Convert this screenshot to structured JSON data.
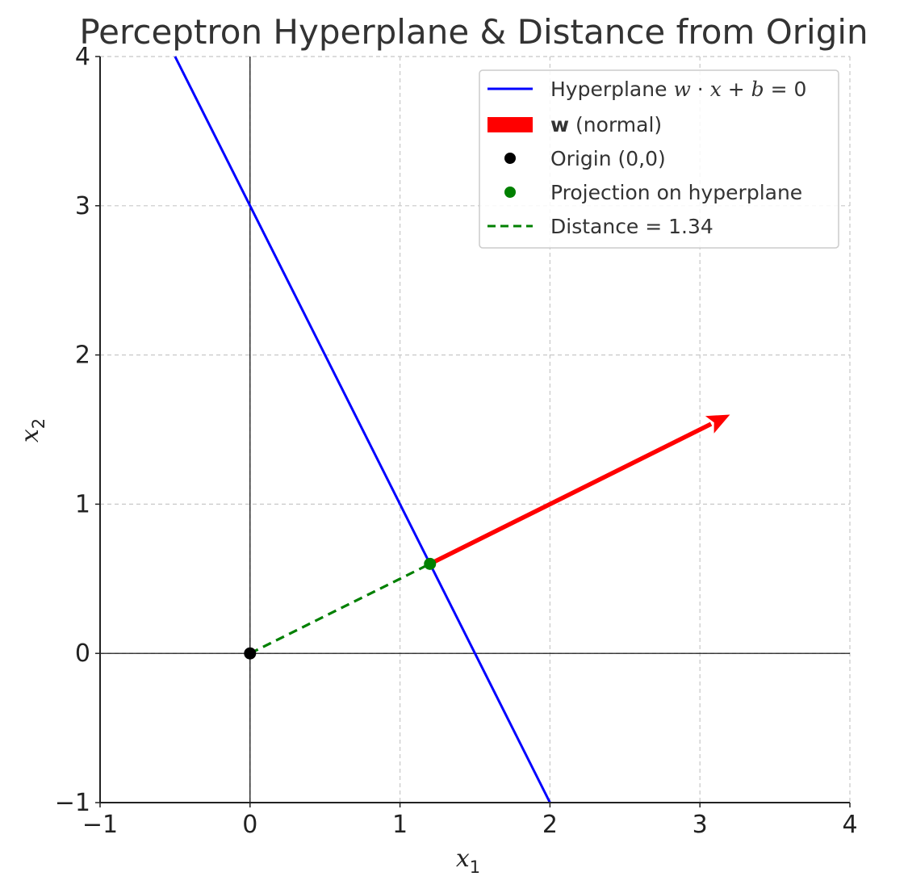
{
  "chart_data": {
    "type": "line",
    "title": "Perceptron Hyperplane & Distance from Origin",
    "xlabel": "x",
    "xlabel_sub": "1",
    "ylabel": "x",
    "ylabel_sub": "2",
    "xlim": [
      -1,
      4
    ],
    "ylim": [
      -1,
      4
    ],
    "xticks": [
      -1,
      0,
      1,
      2,
      3,
      4
    ],
    "yticks": [
      -1,
      0,
      1,
      2,
      3,
      4
    ],
    "xtick_labels": [
      "−1",
      "0",
      "1",
      "2",
      "3",
      "4"
    ],
    "ytick_labels": [
      "−1",
      "0",
      "1",
      "2",
      "3",
      "4"
    ],
    "grid": true,
    "legend_position": "top-right",
    "series": [
      {
        "kind": "line",
        "color": "#0000ff",
        "legend": "Hyperplane w · x + b = 0",
        "x": [
          -0.5,
          2.0
        ],
        "y": [
          4.0,
          -1.0
        ]
      },
      {
        "kind": "arrow",
        "color": "#ff0000",
        "legend": "w (normal)",
        "x": [
          1.2,
          3.2
        ],
        "y": [
          0.6,
          1.6
        ]
      },
      {
        "kind": "point",
        "color": "#000000",
        "legend": "Origin (0,0)",
        "x": [
          0
        ],
        "y": [
          0
        ]
      },
      {
        "kind": "point",
        "color": "#008000",
        "legend": "Projection on hyperplane",
        "x": [
          1.2
        ],
        "y": [
          0.6
        ]
      },
      {
        "kind": "dashed",
        "color": "#008000",
        "legend": "Distance = 1.34",
        "x": [
          0,
          1.2
        ],
        "y": [
          0,
          0.6
        ]
      }
    ],
    "reference_lines": {
      "x0": true,
      "y0": true
    }
  },
  "legend": {
    "hyperplane_prefix": "Hyperplane ",
    "hyperplane_w": "w",
    "hyperplane_dot": " · ",
    "hyperplane_x": "x",
    "hyperplane_plus": " + ",
    "hyperplane_b": "b",
    "hyperplane_eq": " = 0",
    "normal_bold": "w",
    "normal_rest": " (normal)",
    "origin": "Origin (0,0)",
    "projection": "Projection on hyperplane",
    "distance": "Distance = 1.34"
  }
}
